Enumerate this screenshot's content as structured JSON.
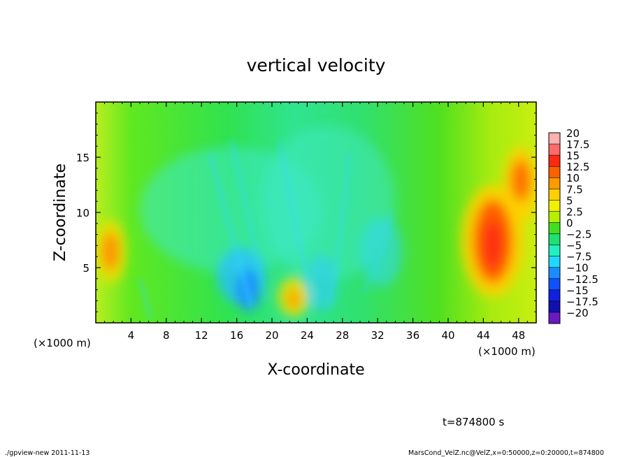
{
  "chart_data": {
    "type": "heatmap",
    "title": "vertical velocity",
    "xlabel": "X-coordinate",
    "ylabel": "Z-coordinate",
    "x_unit_label": "(×1000 m)",
    "xlim": [
      0,
      50
    ],
    "ylim": [
      0,
      20
    ],
    "x_ticks": [
      4,
      8,
      12,
      16,
      20,
      24,
      28,
      32,
      36,
      40,
      44,
      48
    ],
    "y_ticks": [
      5,
      10,
      15
    ],
    "x_tick_labels": [
      "4",
      "8",
      "12",
      "16",
      "20",
      "24",
      "28",
      "32",
      "36",
      "40",
      "44",
      "48"
    ],
    "y_tick_labels": [
      "5",
      "10",
      "15"
    ],
    "colorbar": {
      "levels": [
        20,
        17.5,
        15,
        12.5,
        10,
        7.5,
        5,
        2.5,
        0,
        -2.5,
        -5,
        -7.5,
        -10,
        -12.5,
        -15,
        -17.5,
        -20
      ],
      "labels": [
        "20",
        "17.5",
        "15",
        "12.5",
        "10",
        "7.5",
        "5",
        "2.5",
        "0",
        "−2.5",
        "−5",
        "−7.5",
        "−10",
        "−12.5",
        "−15",
        "−17.5",
        "−20"
      ],
      "colors": [
        "#ffb0b0",
        "#ff6a6a",
        "#ff2a10",
        "#ff6000",
        "#ff9a00",
        "#ffd000",
        "#f0f000",
        "#b4f000",
        "#40e020",
        "#20e070",
        "#20f0c0",
        "#20d8ff",
        "#1a8cff",
        "#1050ff",
        "#1020e0",
        "#1010b0",
        "#6a18c0"
      ]
    },
    "field_features": [
      {
        "kind": "updraft",
        "x": 2,
        "z": 6.5,
        "value": 11
      },
      {
        "kind": "downdraft",
        "x": 16.5,
        "z": 4,
        "value": -8
      },
      {
        "kind": "updraft",
        "x": 22.5,
        "z": 2.5,
        "value": 9
      },
      {
        "kind": "downdraft",
        "x": 27,
        "z": 9,
        "value": -5
      },
      {
        "kind": "updraft",
        "x": 45,
        "z": 7,
        "value": 14
      },
      {
        "kind": "updraft",
        "x": 48,
        "z": 12.5,
        "value": 12
      }
    ]
  },
  "annotations": {
    "time": "t=874800 s",
    "footer_left": "./gpview-new   2011-11-13",
    "footer_right": "MarsCond_VelZ.nc@VelZ,x=0:50000,z=0:20000,t=874800"
  }
}
